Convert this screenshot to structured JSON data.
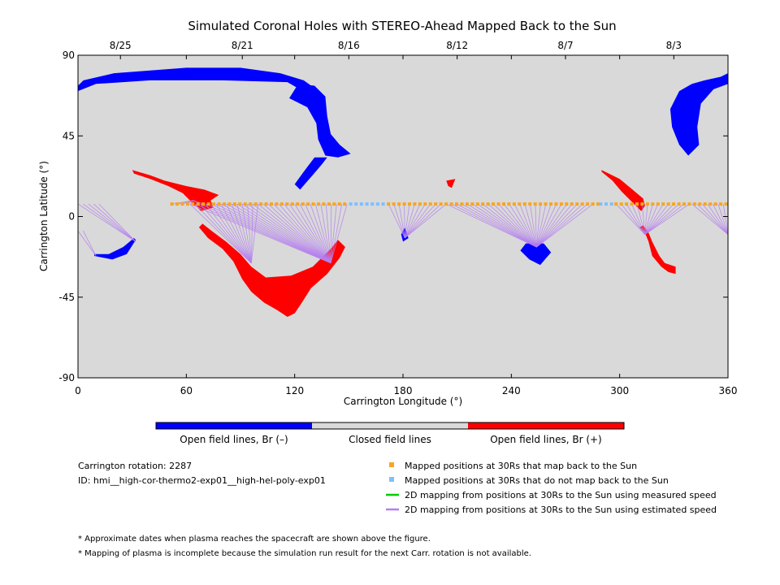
{
  "chart_data": {
    "type": "scatter",
    "title": "Simulated Coronal Holes with STEREO-Ahead Mapped Back to the Sun",
    "xlabel": "Carrington Longitude (°)",
    "ylabel": "Carrington Latitude (°)",
    "xlim": [
      0,
      360
    ],
    "ylim": [
      -90,
      90
    ],
    "x_ticks": [
      0,
      60,
      120,
      180,
      240,
      300,
      360
    ],
    "y_ticks": [
      -90,
      -45,
      0,
      45,
      90
    ],
    "top_axis_dates": [
      {
        "lon": 23.5,
        "label": "8/25"
      },
      {
        "lon": 91,
        "label": "8/21"
      },
      {
        "lon": 150,
        "label": "8/16"
      },
      {
        "lon": 210,
        "label": "8/12"
      },
      {
        "lon": 270,
        "label": "8/7"
      },
      {
        "lon": 330,
        "label": "8/3"
      }
    ],
    "background_color": "#d9d9d9",
    "colors": {
      "negative": "#0000ff",
      "positive": "#ff0000",
      "closed": "#d9d9d9",
      "map_back": "#f5a623",
      "no_map_back": "#7fbfff",
      "measured_speed": "#00cc00",
      "estimated_speed": "#b57fee"
    },
    "coronal_holes": [
      {
        "polarity": "negative",
        "points": [
          [
            0,
            73
          ],
          [
            3,
            76
          ],
          [
            20,
            80
          ],
          [
            60,
            83
          ],
          [
            90,
            83
          ],
          [
            112,
            80
          ],
          [
            125,
            76
          ],
          [
            132,
            71
          ],
          [
            128,
            68
          ],
          [
            116,
            75
          ],
          [
            80,
            76
          ],
          [
            40,
            76
          ],
          [
            10,
            74
          ],
          [
            0,
            70
          ]
        ]
      },
      {
        "polarity": "negative",
        "points": [
          [
            117,
            66
          ],
          [
            127,
            61
          ],
          [
            132,
            52
          ],
          [
            133,
            43
          ],
          [
            137,
            34
          ],
          [
            144,
            33
          ],
          [
            151,
            35
          ],
          [
            145,
            40
          ],
          [
            140,
            46
          ],
          [
            138,
            56
          ],
          [
            137,
            67
          ],
          [
            131,
            73
          ],
          [
            122,
            74
          ]
        ]
      },
      {
        "polarity": "negative",
        "points": [
          [
            131,
            33
          ],
          [
            125,
            25
          ],
          [
            120,
            18
          ],
          [
            123,
            15
          ],
          [
            129,
            22
          ],
          [
            135,
            29
          ],
          [
            138,
            33
          ]
        ]
      },
      {
        "polarity": "negative",
        "points": [
          [
            347,
            76
          ],
          [
            356,
            78
          ],
          [
            360,
            80
          ],
          [
            360,
            74
          ],
          [
            352,
            71
          ],
          [
            345,
            63
          ],
          [
            343,
            50
          ],
          [
            344,
            40
          ],
          [
            338,
            34
          ],
          [
            333,
            40
          ],
          [
            329,
            50
          ],
          [
            328,
            60
          ],
          [
            333,
            70
          ],
          [
            340,
            74
          ]
        ]
      },
      {
        "polarity": "negative",
        "points": [
          [
            9,
            -22
          ],
          [
            19,
            -24
          ],
          [
            27,
            -21
          ],
          [
            32,
            -13
          ],
          [
            31,
            -12
          ],
          [
            25,
            -17
          ],
          [
            17,
            -21
          ],
          [
            9,
            -21
          ]
        ]
      },
      {
        "polarity": "negative",
        "points": [
          [
            181,
            -6
          ],
          [
            183,
            -12
          ],
          [
            180,
            -14
          ],
          [
            179,
            -10
          ]
        ]
      },
      {
        "polarity": "negative",
        "points": [
          [
            248,
            -15
          ],
          [
            258,
            -15
          ],
          [
            262,
            -20
          ],
          [
            256,
            -27
          ],
          [
            250,
            -24
          ],
          [
            245,
            -19
          ]
        ]
      },
      {
        "polarity": "positive",
        "points": [
          [
            30,
            26
          ],
          [
            40,
            23
          ],
          [
            48,
            20
          ],
          [
            60,
            17
          ],
          [
            70,
            15
          ],
          [
            78,
            12
          ],
          [
            72,
            8
          ],
          [
            64,
            6
          ],
          [
            62,
            9
          ],
          [
            58,
            13
          ],
          [
            50,
            17
          ],
          [
            40,
            21
          ],
          [
            31,
            24
          ]
        ]
      },
      {
        "polarity": "positive",
        "points": [
          [
            64,
            8
          ],
          [
            73,
            10
          ],
          [
            75,
            5
          ],
          [
            68,
            3
          ]
        ]
      },
      {
        "polarity": "positive",
        "points": [
          [
            67,
            -6
          ],
          [
            72,
            -12
          ],
          [
            80,
            -18
          ],
          [
            86,
            -25
          ],
          [
            91,
            -35
          ],
          [
            96,
            -42
          ],
          [
            103,
            -48
          ],
          [
            110,
            -52
          ],
          [
            116,
            -56
          ],
          [
            120,
            -54
          ],
          [
            124,
            -48
          ],
          [
            129,
            -40
          ],
          [
            138,
            -32
          ],
          [
            145,
            -23
          ],
          [
            148,
            -17
          ],
          [
            144,
            -13
          ],
          [
            140,
            -18
          ],
          [
            130,
            -28
          ],
          [
            118,
            -33
          ],
          [
            104,
            -34
          ],
          [
            96,
            -28
          ],
          [
            90,
            -21
          ],
          [
            82,
            -14
          ],
          [
            74,
            -8
          ],
          [
            69,
            -4
          ]
        ]
      },
      {
        "polarity": "positive",
        "points": [
          [
            204,
            20
          ],
          [
            209,
            21
          ],
          [
            207,
            16
          ],
          [
            205,
            17
          ]
        ]
      },
      {
        "polarity": "positive",
        "points": [
          [
            290,
            26
          ],
          [
            300,
            21
          ],
          [
            306,
            16
          ],
          [
            313,
            10
          ],
          [
            314,
            6
          ],
          [
            312,
            3
          ],
          [
            307,
            8
          ],
          [
            301,
            14
          ],
          [
            296,
            20
          ],
          [
            290,
            25
          ]
        ]
      },
      {
        "polarity": "positive",
        "points": [
          [
            311,
            -6
          ],
          [
            314,
            -9
          ],
          [
            316,
            -14
          ],
          [
            318,
            -22
          ],
          [
            323,
            -28
          ],
          [
            327,
            -31
          ],
          [
            331,
            -32
          ],
          [
            331,
            -28
          ],
          [
            325,
            -26
          ],
          [
            322,
            -22
          ],
          [
            318,
            -14
          ],
          [
            316,
            -9
          ],
          [
            313,
            -5
          ]
        ]
      }
    ],
    "series": [
      {
        "name": "Mapped positions at 30Rs that map back to the Sun",
        "marker": "square",
        "color": "#f5a623",
        "lat": 7,
        "lon_ranges": [
          [
            52,
            148
          ],
          [
            172,
            288
          ],
          [
            298,
            360
          ]
        ],
        "lon_step": 2.9
      },
      {
        "name": "Mapped positions at 30Rs that do not map back to the Sun",
        "marker": "square",
        "color": "#7fbfff",
        "lat": 7,
        "lon": [
          151,
          154,
          157,
          160,
          163,
          166,
          169,
          289.5,
          292.5,
          295.5
        ]
      },
      {
        "name": "2D mapping from positions at 30Rs to the Sun using measured speed",
        "marker": "line",
        "color": "#00cc00",
        "lines": []
      },
      {
        "name": "2D mapping from positions at 30Rs to the Sun using estimated speed",
        "marker": "line",
        "color": "#b57fee",
        "fans": [
          {
            "from_lon": [
              0,
              12
            ],
            "from_lat": 7,
            "to": [
              32,
              -14
            ]
          },
          {
            "from_lon": [
              0,
              5
            ],
            "from_lat": -8,
            "to": [
              10,
              -22
            ]
          },
          {
            "from_lon": [
              52,
              70
            ],
            "from_lat": 7,
            "to": [
              64,
              9
            ]
          },
          {
            "from_lon": [
              62,
              150
            ],
            "from_lat": 7,
            "to": [
              140,
              -26
            ]
          },
          {
            "from_lon": [
              62,
              100
            ],
            "from_lat": 7,
            "to": [
              96,
              -26
            ]
          },
          {
            "from_lon": [
              172,
              204
            ],
            "from_lat": 7,
            "to": [
              181,
              -12
            ]
          },
          {
            "from_lon": [
              204,
              286
            ],
            "from_lat": 7,
            "to": [
              254,
              -17
            ]
          },
          {
            "from_lon": [
              298,
              340
            ],
            "from_lat": 7,
            "to": [
              314,
              -10
            ]
          },
          {
            "from_lon": [
              340,
              360
            ],
            "from_lat": 7,
            "to": [
              360,
              -10
            ]
          }
        ]
      }
    ],
    "colorbar": {
      "segments": [
        {
          "label": "Open field lines, Br (–)",
          "color": "#0000ff"
        },
        {
          "label": "Closed field lines",
          "color": "#d9d9d9"
        },
        {
          "label": "Open field lines, Br (+)",
          "color": "#ff0000"
        }
      ]
    },
    "legend": {
      "position": "bottom-right",
      "entries": [
        {
          "label": "Mapped positions at 30Rs that map back to the Sun",
          "color": "#f5a623",
          "marker": "square"
        },
        {
          "label": "Mapped positions at 30Rs that do not map back to the Sun",
          "color": "#7fbfff",
          "marker": "square"
        },
        {
          "label": "2D mapping from positions at 30Rs to the Sun using measured speed",
          "color": "#00cc00",
          "marker": "line"
        },
        {
          "label": "2D mapping from positions at 30Rs to the Sun using estimated speed",
          "color": "#b57fee",
          "marker": "line"
        }
      ]
    },
    "info": [
      "Carrington rotation: 2287",
      "ID: hmi__high-cor-thermo2-exp01__high-hel-poly-exp01"
    ],
    "notes": [
      "* Approximate dates when plasma reaches the spacecraft are shown above the figure.",
      "* Mapping of plasma is incomplete because the simulation run result for the next Carr. rotation is not available."
    ]
  }
}
